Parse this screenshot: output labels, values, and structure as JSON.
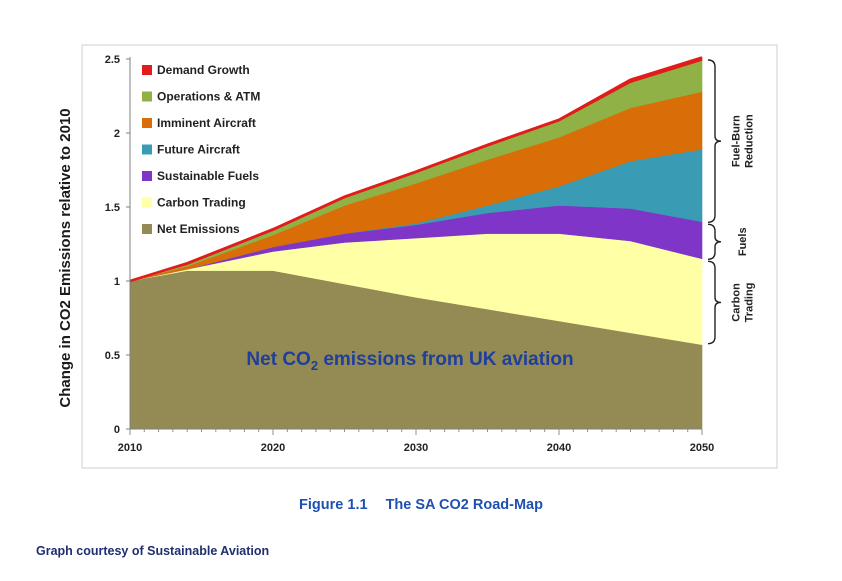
{
  "chart_data": {
    "type": "area",
    "stacked": true,
    "ylabel": "Change in CO2 Emissions relative to 2010",
    "annotation": "Net CO₂ emissions from UK aviation",
    "x_ticks": [
      2010,
      2020,
      2030,
      2040,
      2050
    ],
    "y_ticks": [
      "0",
      "0.5",
      "1",
      "1.5",
      "2",
      "2.5"
    ],
    "xlim": [
      2010,
      2050
    ],
    "ylim": [
      0,
      2.5
    ],
    "legend_position": "top-left",
    "x": [
      2010,
      2014,
      2020,
      2025,
      2030,
      2035,
      2040,
      2045,
      2050
    ],
    "series": [
      {
        "name": "Net Emissions",
        "color": "#948a54",
        "values": [
          1.0,
          1.07,
          1.07,
          0.98,
          0.89,
          0.81,
          0.73,
          0.65,
          0.57
        ]
      },
      {
        "name": "Carbon Trading",
        "color": "#ffffa6",
        "values": [
          0.0,
          0.01,
          0.13,
          0.28,
          0.4,
          0.51,
          0.59,
          0.62,
          0.58
        ]
      },
      {
        "name": "Sustainable Fuels",
        "color": "#7f35c8",
        "values": [
          0.0,
          0.0,
          0.03,
          0.06,
          0.09,
          0.14,
          0.19,
          0.22,
          0.25
        ]
      },
      {
        "name": "Future Aircraft",
        "color": "#3a9bb4",
        "values": [
          0.0,
          0.0,
          0.0,
          0.0,
          0.01,
          0.05,
          0.13,
          0.32,
          0.49
        ]
      },
      {
        "name": "Imminent Aircraft",
        "color": "#d96d08",
        "values": [
          0.0,
          0.02,
          0.08,
          0.19,
          0.27,
          0.31,
          0.33,
          0.36,
          0.39
        ]
      },
      {
        "name": "Operations & ATM",
        "color": "#8fb145",
        "values": [
          0.0,
          0.01,
          0.03,
          0.05,
          0.07,
          0.09,
          0.11,
          0.17,
          0.21
        ]
      },
      {
        "name": "Demand Growth",
        "color": "#e21b1b",
        "values": [
          0.0,
          0.01,
          0.01,
          0.01,
          0.01,
          0.01,
          0.01,
          0.02,
          0.02
        ]
      }
    ],
    "legend_order": [
      "Demand Growth",
      "Operations & ATM",
      "Imminent Aircraft",
      "Future Aircraft",
      "Sustainable Fuels",
      "Carbon Trading",
      "Net Emissions"
    ],
    "brackets": [
      {
        "label_lines": [
          "Fuel-Burn",
          "Reduction"
        ],
        "from": 1.39,
        "to": 2.5
      },
      {
        "label_lines": [
          "Fuels"
        ],
        "from": 1.14,
        "to": 1.39
      },
      {
        "label_lines": [
          "Carbon",
          "Trading"
        ],
        "from": 0.57,
        "to": 1.14
      }
    ]
  },
  "figure_caption": {
    "number": "Figure 1.1",
    "title": "The SA CO2 Road-Map"
  },
  "credit": "Graph courtesy of Sustainable Aviation"
}
